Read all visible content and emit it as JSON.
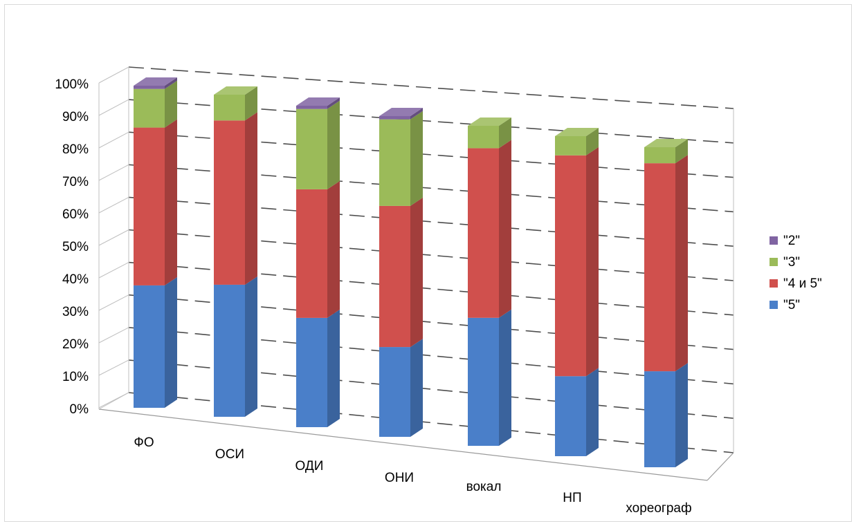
{
  "chart_data": {
    "type": "bar",
    "stacked": true,
    "percent": true,
    "three_d": true,
    "categories": [
      "ФО",
      "ОСИ",
      "ОДИ",
      "ОНИ",
      "вокал",
      "НП",
      "хореограф"
    ],
    "series": [
      {
        "name": "\"5\"",
        "color": "#4a7fc9",
        "values": [
          38,
          41,
          34,
          28,
          40,
          25,
          30
        ]
      },
      {
        "name": "\"4 и 5\"",
        "color": "#d0504d",
        "values": [
          49,
          51,
          40,
          44,
          53,
          69,
          65
        ]
      },
      {
        "name": "\"3\"",
        "color": "#9bbb59",
        "values": [
          12,
          8,
          25,
          27,
          7,
          6,
          5
        ]
      },
      {
        "name": "\"2\"",
        "color": "#8064a2",
        "values": [
          1,
          0,
          1,
          1,
          0,
          0,
          0
        ]
      }
    ],
    "y_ticks": [
      "0%",
      "10%",
      "20%",
      "30%",
      "40%",
      "50%",
      "60%",
      "70%",
      "80%",
      "90%",
      "100%"
    ],
    "ylim": [
      0,
      100
    ],
    "grid": true,
    "legend_position": "right",
    "legend_order": [
      "\"2\"",
      "\"3\"",
      "\"4 и 5\"",
      "\"5\""
    ]
  }
}
